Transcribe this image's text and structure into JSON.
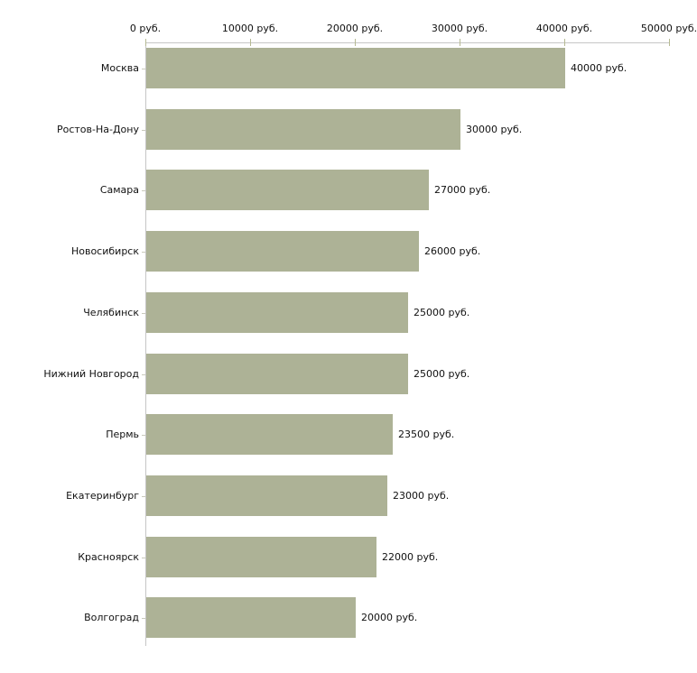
{
  "chart_data": {
    "type": "bar",
    "orientation": "horizontal",
    "title": "",
    "xlabel": "",
    "ylabel": "",
    "unit": "руб.",
    "categories": [
      "Москва",
      "Ростов-На-Дону",
      "Самара",
      "Новосибирск",
      "Челябинск",
      "Нижний Новгород",
      "Пермь",
      "Екатеринбург",
      "Красноярск",
      "Волгоград"
    ],
    "values": [
      40000,
      30000,
      27000,
      26000,
      25000,
      25000,
      23500,
      23000,
      22000,
      20000
    ],
    "value_labels": [
      "40000 руб.",
      "30000 руб.",
      "27000 руб.",
      "26000 руб.",
      "25000 руб.",
      "25000 руб.",
      "23500 руб.",
      "23000 руб.",
      "22000 руб.",
      "20000 руб."
    ],
    "x_axis": {
      "position": "top",
      "range": [
        0,
        50000
      ],
      "ticks": [
        0,
        10000,
        20000,
        30000,
        40000,
        50000
      ],
      "tick_labels": [
        "0 руб.",
        "10000 руб.",
        "20000 руб.",
        "30000 руб.",
        "40000 руб.",
        "50000 руб."
      ]
    },
    "legend": "none",
    "grid": "off",
    "colors": {
      "bar": "#adb296",
      "axis_line": "#c6c6c6",
      "x_tick": "#b6ba93",
      "category_tick": "#c9c9bc",
      "text": "#111111",
      "background": "#ffffff"
    }
  }
}
